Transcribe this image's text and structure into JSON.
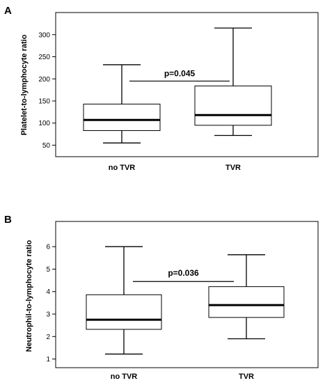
{
  "chart_data": [
    {
      "type": "box",
      "panel": "A",
      "categories": [
        "no TVR",
        "TVR"
      ],
      "ylabel": "Platelet-to-lymphocyte ratio",
      "yticks": [
        50,
        100,
        150,
        200,
        250,
        300
      ],
      "ylim": [
        35,
        328
      ],
      "boxes": [
        {
          "category": "no TVR",
          "min": 55,
          "q1": 83,
          "median": 107,
          "q3": 143,
          "max": 232
        },
        {
          "category": "TVR",
          "min": 72,
          "q1": 95,
          "median": 118,
          "q3": 184,
          "max": 315
        }
      ],
      "annotation": {
        "text": "p=0.045",
        "y": 195
      },
      "grid": false,
      "legend": "none"
    },
    {
      "type": "box",
      "panel": "B",
      "categories": [
        "no TVR",
        "TVR"
      ],
      "ylabel": "Neutrophil-to-lymphocyte ratio",
      "yticks": [
        1,
        2,
        3,
        4,
        5,
        6
      ],
      "ylim": [
        0.8,
        6.75
      ],
      "boxes": [
        {
          "category": "no TVR",
          "min": 1.22,
          "q1": 2.32,
          "median": 2.75,
          "q3": 3.86,
          "max": 6.0
        },
        {
          "category": "TVR",
          "min": 1.9,
          "q1": 2.85,
          "median": 3.4,
          "q3": 4.22,
          "max": 5.64
        }
      ],
      "annotation": {
        "text": "p=0.036",
        "y": 4.45
      },
      "grid": false,
      "legend": "none"
    }
  ]
}
